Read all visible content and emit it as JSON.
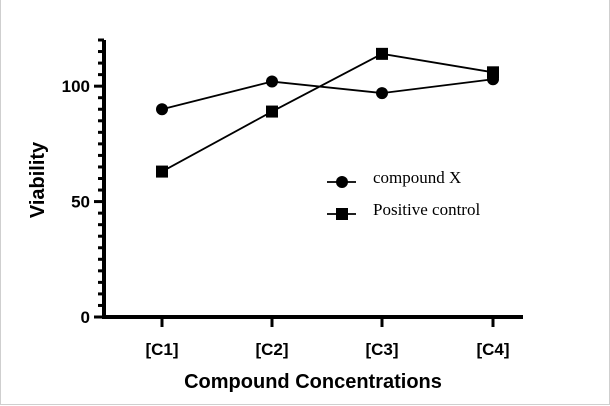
{
  "chart_data": {
    "type": "line",
    "title": "",
    "xlabel": "Compound Concentrations",
    "ylabel": "Viability",
    "categories": [
      "[C1]",
      "[C2]",
      "[C3]",
      "[C4]"
    ],
    "ylim": [
      0,
      120
    ],
    "yticks": [
      0,
      50,
      100
    ],
    "ytick_labels": [
      "0",
      "50",
      "100"
    ],
    "minor_tick_step": 5,
    "grid": false,
    "legend_position": "center-right",
    "series": [
      {
        "name": "compound X",
        "marker": "circle",
        "values": [
          90,
          102,
          97,
          103
        ]
      },
      {
        "name": "Positive control",
        "marker": "square",
        "values": [
          63,
          89,
          114,
          106
        ]
      }
    ]
  }
}
